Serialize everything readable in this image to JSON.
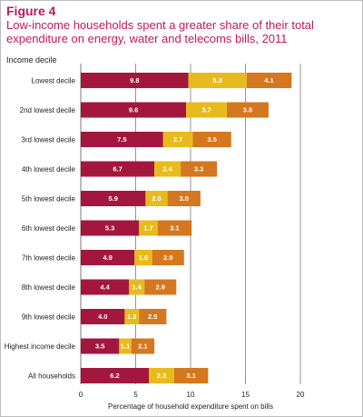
{
  "figure_label": "Figure 4",
  "title": "Low-income households spent a greater share of their total expenditure on energy, water and telecoms bills, 2011",
  "colors": {
    "energy": "#a3173f",
    "water": "#e7bb1d",
    "telecoms": "#d4771e",
    "grid": "#7a7a7a"
  },
  "chart_data": {
    "type": "bar",
    "orientation": "horizontal",
    "stacked": true,
    "title": "Low-income households spent a greater share of their total expenditure on energy, water and telecoms bills, 2011",
    "ylabel": "Income decile",
    "xlabel": "Percentage of household expenditure spent on bills",
    "xlim": [
      0,
      20
    ],
    "xticks": [
      0,
      5,
      10,
      15,
      20
    ],
    "grid": "vertical",
    "categories": [
      "Lowest decile",
      "2nd lowest decile",
      "3rd lowest decile",
      "4th lowest decile",
      "5th lowest decile",
      "6th lowest decile",
      "7th lowest decile",
      "8th lowest decile",
      "9th lowest decile",
      "Highest income decile",
      "All households"
    ],
    "series": [
      {
        "values": [
          9.8,
          9.6,
          7.5,
          6.7,
          5.9,
          5.3,
          4.9,
          4.4,
          4.0,
          3.5,
          6.2
        ]
      },
      {
        "values": [
          5.3,
          3.7,
          2.7,
          2.4,
          2.0,
          1.7,
          1.6,
          1.4,
          1.3,
          1.1,
          2.3
        ]
      },
      {
        "values": [
          4.1,
          3.8,
          3.5,
          3.3,
          3.0,
          3.1,
          2.9,
          2.9,
          2.5,
          2.1,
          3.1
        ]
      }
    ]
  }
}
